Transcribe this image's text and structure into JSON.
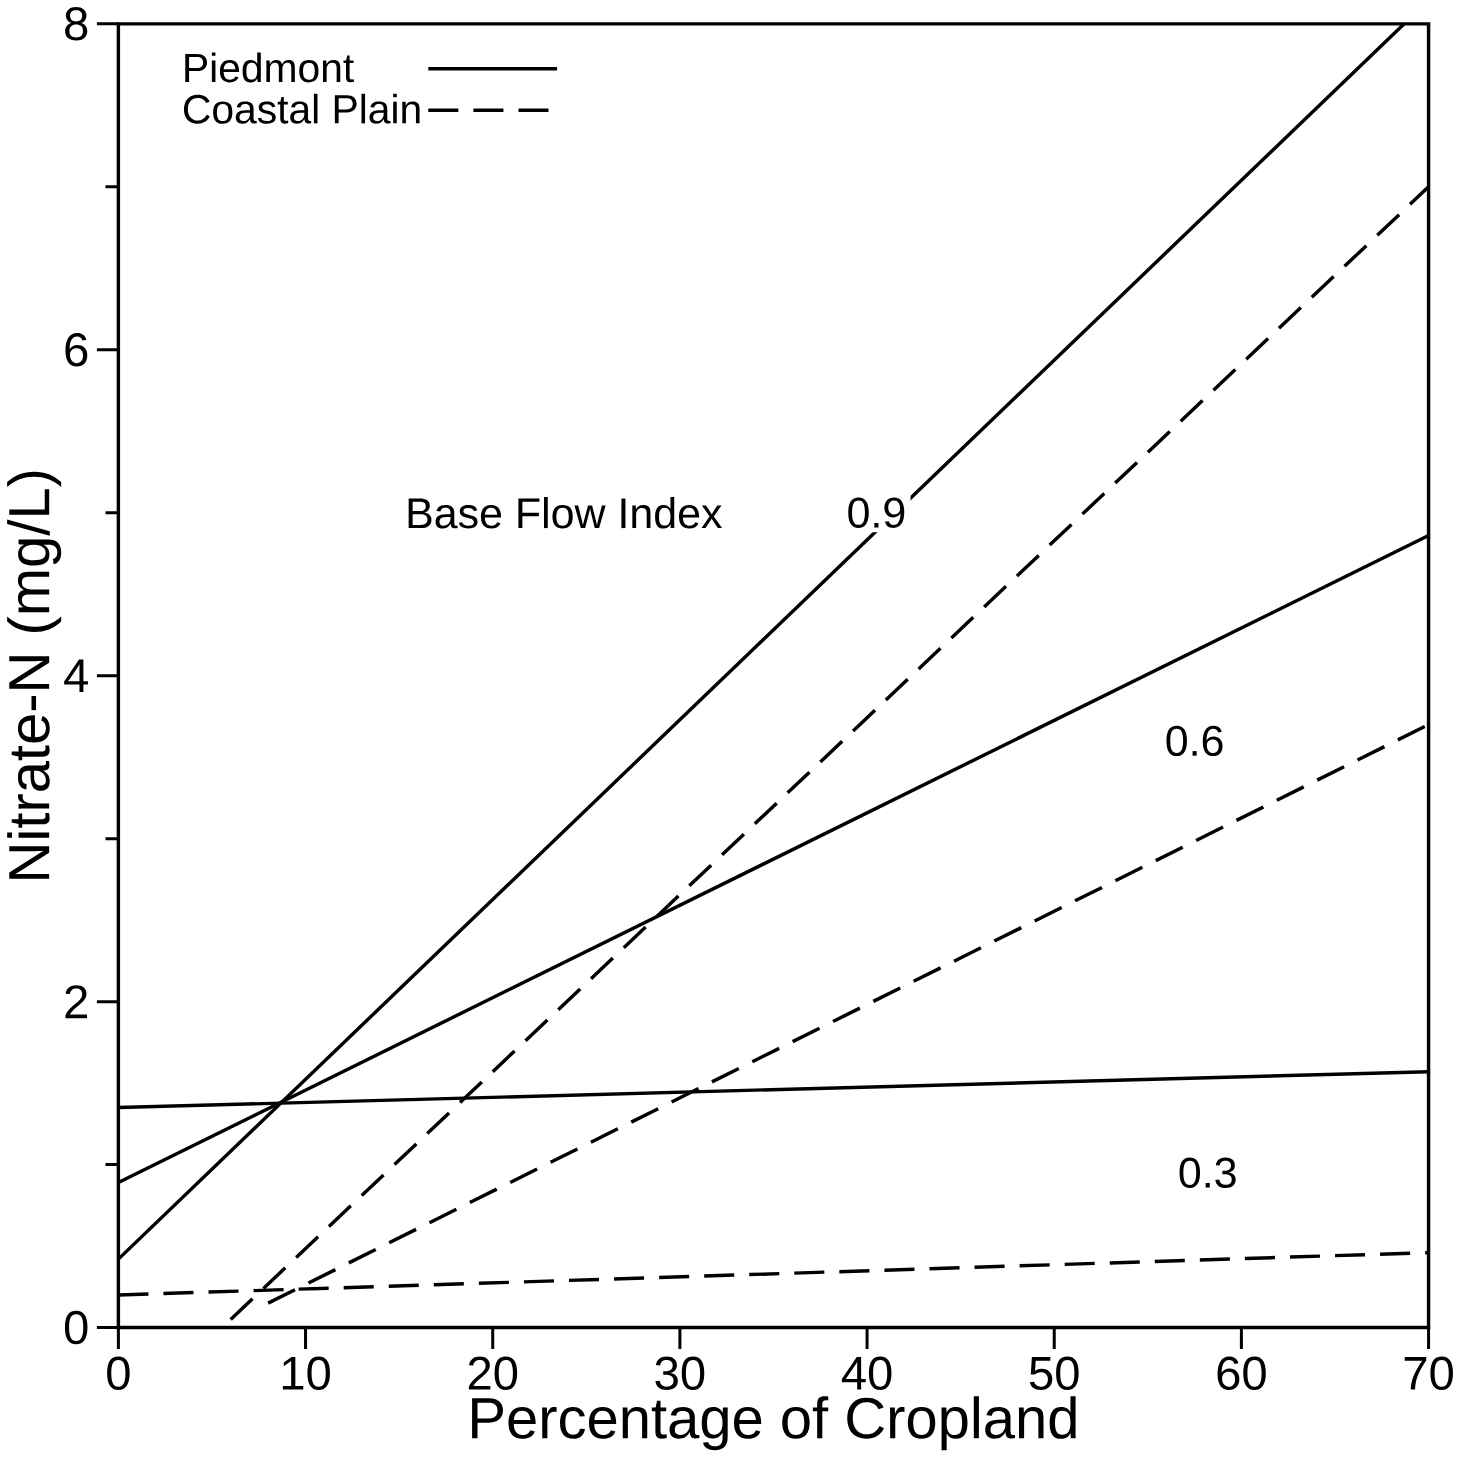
{
  "chart_data": {
    "type": "line",
    "xlabel": "Percentage of Cropland",
    "ylabel": "Nitrate-N (mg/L)",
    "xlim": [
      0,
      70
    ],
    "ylim": [
      0,
      8
    ],
    "xticks": [
      0,
      10,
      20,
      30,
      40,
      50,
      60,
      70
    ],
    "yticks": [
      0,
      2,
      4,
      6,
      8
    ],
    "legend": "top left",
    "grid": false,
    "marker": "none",
    "series": [
      {
        "name": "Piedmont",
        "color": "#000000",
        "line_style": "solid",
        "x": [
          0,
          68.7
        ],
        "values": [
          0.42,
          8
        ]
      },
      {
        "name": "Coastal Plain",
        "color": "#000000",
        "line_style": "dashed",
        "x": [
          6,
          70
        ],
        "values": [
          0.05,
          7.0
        ]
      },
      {
        "color": "#000000",
        "line_style": "solid",
        "x": [
          0,
          70
        ],
        "values": [
          0.89,
          4.86
        ]
      },
      {
        "color": "#000000",
        "line_style": "dashed",
        "x": [
          8,
          70
        ],
        "values": [
          0.15,
          3.7
        ]
      },
      {
        "color": "#000000",
        "line_style": "solid",
        "x": [
          0,
          70
        ],
        "values": [
          1.35,
          1.57
        ]
      },
      {
        "color": "#000000",
        "line_style": "dashed",
        "x": [
          0,
          70
        ],
        "values": [
          0.2,
          0.46
        ]
      }
    ],
    "annotations": [
      "Base Flow Index",
      {
        "text": "0.9",
        "x": 40.5,
        "y": 5.0
      },
      {
        "text": "0.6",
        "x": 57.5,
        "y": 3.6
      },
      {
        "text": "0.3",
        "x": 58.2,
        "y": 0.95
      }
    ]
  }
}
